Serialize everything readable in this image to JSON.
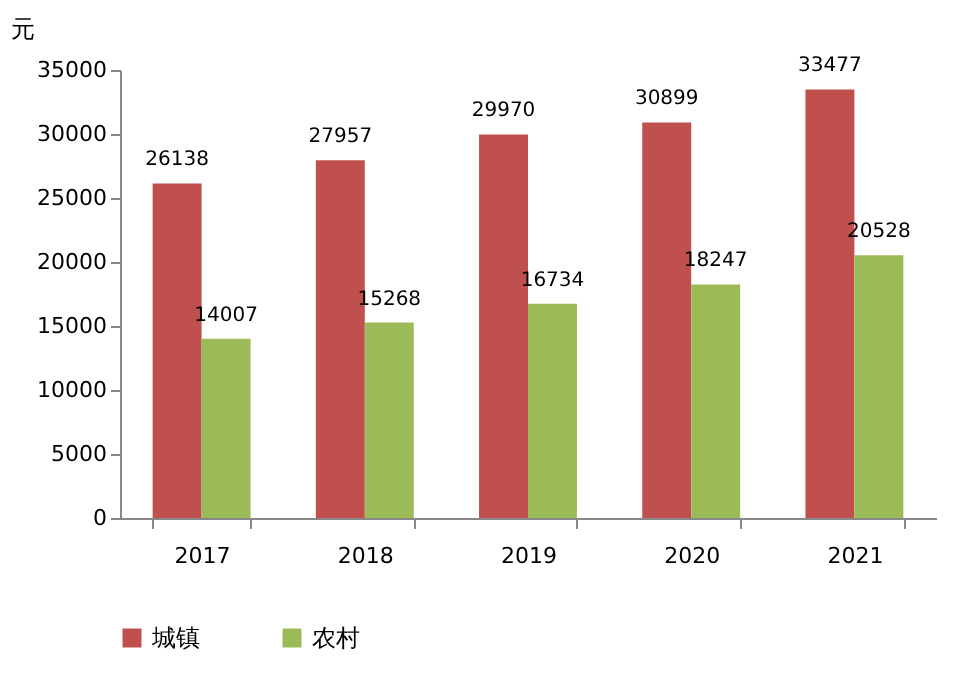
{
  "chart_data": {
    "type": "bar",
    "ylabel": "元",
    "categories": [
      "2017",
      "2018",
      "2019",
      "2020",
      "2021"
    ],
    "series": [
      {
        "name": "城镇",
        "color": "#c0504d",
        "values": [
          26138,
          27957,
          29970,
          30899,
          33477
        ]
      },
      {
        "name": "农村",
        "color": "#9bbb59",
        "values": [
          14007,
          15268,
          16734,
          18247,
          20528
        ]
      }
    ],
    "ylim": [
      0,
      35000
    ],
    "yticks": [
      0,
      5000,
      10000,
      15000,
      20000,
      25000,
      30000,
      35000
    ],
    "grid": false,
    "legend": "bottom",
    "data_labels": true
  }
}
